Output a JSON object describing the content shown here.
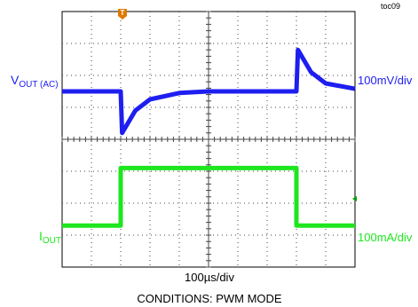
{
  "figure_id": "toc09",
  "trigger_marker": "T",
  "chart_data": {
    "type": "line",
    "x_divisions": 10,
    "y_divisions": 8,
    "grid": true,
    "grid_style": "dotted",
    "xlabel": "100µs/div",
    "caption": "CONDITIONS: PWM MODE",
    "channels": [
      {
        "name_main": "V",
        "name_sub": "OUT (AC)",
        "scale_label": "100mV/div",
        "color": "#1e1ef0",
        "baseline_div": 5.0,
        "unit": "mV",
        "points": [
          [
            0,
            0
          ],
          [
            2.0,
            0
          ],
          [
            2.05,
            -130
          ],
          [
            2.5,
            -60
          ],
          [
            3.0,
            -25
          ],
          [
            4.0,
            -5
          ],
          [
            5.0,
            0
          ],
          [
            8.0,
            0
          ],
          [
            8.05,
            130
          ],
          [
            8.5,
            60
          ],
          [
            9.0,
            25
          ],
          [
            10.0,
            8
          ]
        ]
      },
      {
        "name_main": "I",
        "name_sub": "OUT",
        "scale_label": "100mA/div",
        "color": "#1ee61e",
        "baseline_div": 0.0,
        "unit": "mA",
        "points": [
          [
            0,
            0
          ],
          [
            2.0,
            0
          ],
          [
            2.0,
            180
          ],
          [
            8.0,
            180
          ],
          [
            8.0,
            0
          ],
          [
            10.0,
            0
          ]
        ]
      }
    ]
  },
  "colors": {
    "grid": "#444444",
    "axis_frame": "#000000",
    "trigger": "#e07800",
    "level_marker": "#00a000"
  }
}
